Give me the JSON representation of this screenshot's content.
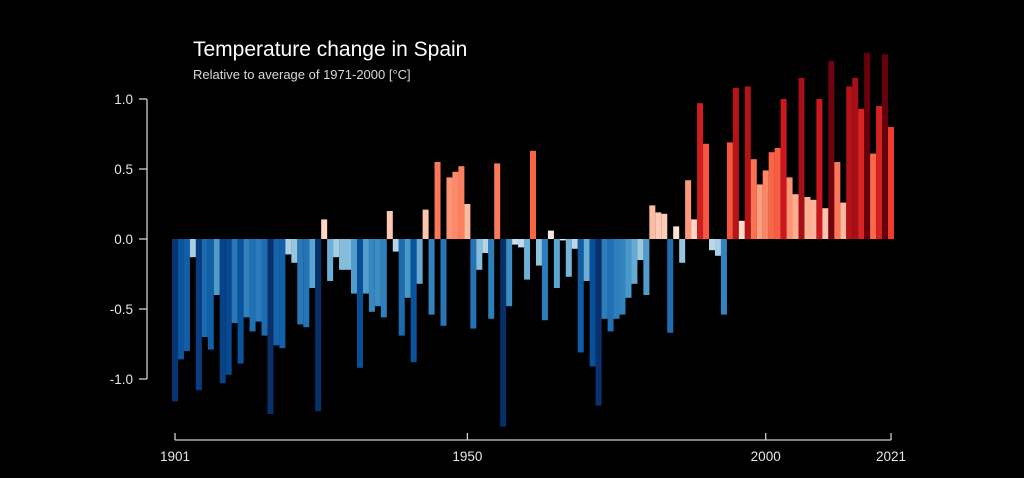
{
  "chart_data": {
    "type": "bar",
    "title": "Temperature change in Spain",
    "subtitle": "Relative to average of 1971-2000  [°C]",
    "xlabel": "",
    "ylabel": "",
    "x_start": 1901,
    "x_end": 2021,
    "ylim": [
      -1.3,
      1.0
    ],
    "yticks": [
      1.0,
      0.5,
      0.0,
      -0.5,
      -1.0
    ],
    "ytick_labels": [
      "1.0",
      "0.5",
      "0.0",
      "-0.5",
      "-1.0"
    ],
    "xticks": [
      1901,
      1950,
      2000,
      2021
    ],
    "xtick_labels": [
      "1901",
      "1950",
      "2000",
      "2021"
    ],
    "grid": false,
    "legend": "none",
    "color_scale": "diverging blue-white-red (RdBu), by anomaly value",
    "years": [
      1901,
      1902,
      1903,
      1904,
      1905,
      1906,
      1907,
      1908,
      1909,
      1910,
      1911,
      1912,
      1913,
      1914,
      1915,
      1916,
      1917,
      1918,
      1919,
      1920,
      1921,
      1922,
      1923,
      1924,
      1925,
      1926,
      1927,
      1928,
      1929,
      1930,
      1931,
      1932,
      1933,
      1934,
      1935,
      1936,
      1937,
      1938,
      1939,
      1940,
      1941,
      1942,
      1943,
      1944,
      1945,
      1946,
      1947,
      1948,
      1949,
      1950,
      1951,
      1952,
      1953,
      1954,
      1955,
      1956,
      1957,
      1958,
      1959,
      1960,
      1961,
      1962,
      1963,
      1964,
      1965,
      1966,
      1967,
      1968,
      1969,
      1970,
      1971,
      1972,
      1973,
      1974,
      1975,
      1976,
      1977,
      1978,
      1979,
      1980,
      1981,
      1982,
      1983,
      1984,
      1985,
      1986,
      1987,
      1988,
      1989,
      1990,
      1991,
      1992,
      1993,
      1994,
      1995,
      1996,
      1997,
      1998,
      1999,
      2000,
      2001,
      2002,
      2003,
      2004,
      2005,
      2006,
      2007,
      2008,
      2009,
      2010,
      2011,
      2012,
      2013,
      2014,
      2015,
      2016,
      2017,
      2018,
      2019,
      2020,
      2021
    ],
    "values": [
      -1.16,
      -0.86,
      -0.8,
      -0.13,
      -1.08,
      -0.7,
      -0.79,
      -0.4,
      -1.03,
      -0.97,
      -0.6,
      -0.89,
      -0.56,
      -0.66,
      -0.59,
      -0.69,
      -1.25,
      -0.76,
      -0.78,
      -0.11,
      -0.17,
      -0.61,
      -0.63,
      -0.35,
      -1.23,
      0.14,
      -0.3,
      -0.13,
      -0.22,
      -0.22,
      -0.39,
      -0.92,
      -0.39,
      -0.52,
      -0.48,
      -0.56,
      0.2,
      -0.09,
      -0.69,
      -0.42,
      -0.88,
      -0.32,
      0.21,
      -0.54,
      0.55,
      -0.62,
      0.44,
      0.48,
      0.52,
      0.25,
      -0.64,
      -0.22,
      -0.1,
      -0.57,
      0.54,
      -1.34,
      -0.48,
      -0.04,
      -0.06,
      -0.29,
      0.63,
      -0.19,
      -0.58,
      0.06,
      -0.35,
      -0.01,
      -0.27,
      -0.07,
      -0.81,
      -0.3,
      -0.91,
      -1.19,
      -0.57,
      -0.66,
      -0.57,
      -0.54,
      -0.42,
      -0.32,
      -0.15,
      -0.4,
      0.24,
      0.19,
      0.18,
      -0.67,
      0.09,
      -0.17,
      0.42,
      0.14,
      0.97,
      0.68,
      -0.08,
      -0.12,
      -0.54,
      0.69,
      1.08,
      0.13,
      1.09,
      0.57,
      0.39,
      0.49,
      0.62,
      0.65,
      1.0,
      0.44,
      0.32,
      1.15,
      0.3,
      0.28,
      1.0,
      0.22,
      1.27,
      0.55,
      0.26,
      1.09,
      1.15,
      0.93,
      1.33,
      0.61,
      0.95,
      1.32,
      0.8
    ]
  }
}
